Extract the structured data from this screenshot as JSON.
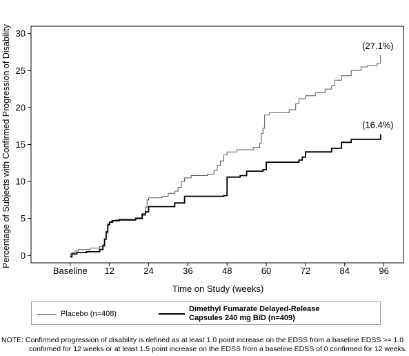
{
  "chart_data": {
    "type": "line",
    "xlabel": "Time on Study (weeks)",
    "ylabel": "Percentage of Subjects with Confirmed Progression of Disability",
    "x_ticks": [
      {
        "value": 0,
        "label": "Baseline"
      },
      {
        "value": 12,
        "label": "12"
      },
      {
        "value": 24,
        "label": "24"
      },
      {
        "value": 36,
        "label": "36"
      },
      {
        "value": 48,
        "label": "48"
      },
      {
        "value": 60,
        "label": "60"
      },
      {
        "value": 72,
        "label": "72"
      },
      {
        "value": 84,
        "label": "84"
      },
      {
        "value": 96,
        "label": "96"
      }
    ],
    "y_ticks": [
      "0",
      "5",
      "10",
      "15",
      "20",
      "25",
      "30"
    ],
    "xlim": [
      -12,
      102
    ],
    "ylim": [
      -1,
      31
    ],
    "grid": false,
    "legend_position": "bottom",
    "series": [
      {
        "name": "Placebo (n=408)",
        "style": "thin",
        "color": "#555555",
        "end_label": "(27.1%)",
        "steps": [
          [
            0,
            -0.2
          ],
          [
            0,
            0.2
          ],
          [
            0.5,
            0.4
          ],
          [
            1.5,
            0.6
          ],
          [
            2.5,
            0.8
          ],
          [
            6,
            1.0
          ],
          [
            9,
            1.2
          ],
          [
            10,
            1.5
          ],
          [
            10.5,
            2.2
          ],
          [
            11,
            3.0
          ],
          [
            11.5,
            4.0
          ],
          [
            12,
            4.5
          ],
          [
            12.5,
            4.7
          ],
          [
            14,
            4.9
          ],
          [
            18,
            4.9
          ],
          [
            20,
            5.1
          ],
          [
            22,
            5.4
          ],
          [
            23,
            6.5
          ],
          [
            23.5,
            7.5
          ],
          [
            24,
            7.8
          ],
          [
            28,
            8.0
          ],
          [
            30,
            8.4
          ],
          [
            32,
            8.7
          ],
          [
            33,
            9.2
          ],
          [
            34,
            10.0
          ],
          [
            35,
            10.5
          ],
          [
            37,
            10.8
          ],
          [
            42,
            11.0
          ],
          [
            44,
            11.5
          ],
          [
            45,
            12.2
          ],
          [
            46,
            12.8
          ],
          [
            47,
            13.6
          ],
          [
            48,
            14.0
          ],
          [
            51,
            14.3
          ],
          [
            56,
            14.6
          ],
          [
            58,
            15.2
          ],
          [
            58.5,
            16.5
          ],
          [
            59,
            17.2
          ],
          [
            59.5,
            19.0
          ],
          [
            61,
            19.3
          ],
          [
            67,
            19.7
          ],
          [
            69,
            20.5
          ],
          [
            70,
            21.2
          ],
          [
            72,
            21.6
          ],
          [
            75,
            22.0
          ],
          [
            78,
            22.5
          ],
          [
            80,
            23.0
          ],
          [
            81,
            23.7
          ],
          [
            83,
            24.3
          ],
          [
            86,
            25.0
          ],
          [
            89,
            25.5
          ],
          [
            91,
            25.7
          ],
          [
            94,
            26.0
          ],
          [
            95,
            27.1
          ]
        ]
      },
      {
        "name": "Dimethyl Fumarate Delayed-Release Capsules 240 mg BID (n=409)",
        "style": "thick",
        "color": "#000000",
        "end_label": "(16.4%)",
        "steps": [
          [
            0,
            -0.2
          ],
          [
            0.5,
            0.2
          ],
          [
            2,
            0.4
          ],
          [
            5,
            0.5
          ],
          [
            9,
            0.8
          ],
          [
            10,
            1.3
          ],
          [
            10.5,
            2.2
          ],
          [
            11,
            3.2
          ],
          [
            11.5,
            4.2
          ],
          [
            12,
            4.5
          ],
          [
            13,
            4.7
          ],
          [
            15,
            4.8
          ],
          [
            20,
            5.0
          ],
          [
            22,
            5.6
          ],
          [
            23,
            5.9
          ],
          [
            24,
            6.6
          ],
          [
            32,
            7.1
          ],
          [
            35,
            8.0
          ],
          [
            47,
            8.1
          ],
          [
            48,
            10.6
          ],
          [
            52,
            10.8
          ],
          [
            54,
            11.4
          ],
          [
            59,
            11.6
          ],
          [
            60,
            12.6
          ],
          [
            70,
            12.9
          ],
          [
            71,
            13.3
          ],
          [
            72,
            14.0
          ],
          [
            80,
            14.5
          ],
          [
            83,
            15.3
          ],
          [
            86,
            15.7
          ],
          [
            95,
            16.4
          ]
        ]
      }
    ]
  },
  "legend": {
    "placebo_label": "Placebo (n=408)",
    "dmf_label_line1": "Dimethyl Fumarate Delayed-Release",
    "dmf_label_line2": "Capsules 240 mg BID (n=409)"
  },
  "note": {
    "line1": "NOTE: Confirmed progression of disability is defined as at least 1.0 point increase on the EDSS from a baseline EDSS >= 1.0",
    "line2": "confirmed for 12 weeks or at least 1.5 point increase on the EDSS from a baseline EDSS of 0 confirmed for 12 weeks."
  }
}
